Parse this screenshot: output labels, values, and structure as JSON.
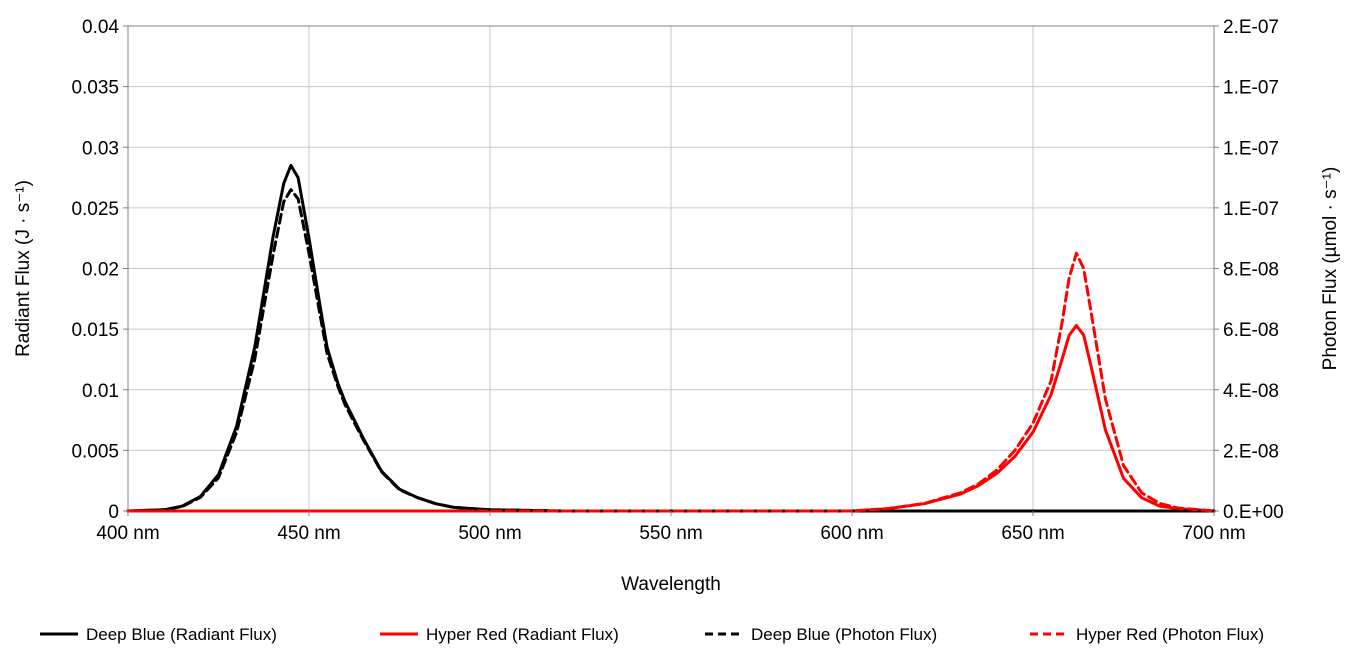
{
  "chart_data": {
    "type": "line",
    "title": "",
    "xlabel": "Wavelength",
    "ylabel_left": "Radiant Flux (J · s⁻¹)",
    "ylabel_right": "Photon Flux (µmol · s⁻¹)",
    "xlim": [
      400,
      700
    ],
    "ylim_left": [
      0,
      0.04
    ],
    "ylim_right": [
      0,
      1.6e-07
    ],
    "x_ticks": [
      400,
      450,
      500,
      550,
      600,
      650,
      700
    ],
    "x_tick_labels": [
      "400 nm",
      "450 nm",
      "500 nm",
      "550 nm",
      "600 nm",
      "650 nm",
      "700 nm"
    ],
    "y_left_ticks": [
      0,
      0.005,
      0.01,
      0.015,
      0.02,
      0.025,
      0.03,
      0.035,
      0.04
    ],
    "y_left_tick_labels": [
      "0",
      "0.005",
      "0.01",
      "0.015",
      "0.02",
      "0.025",
      "0.03",
      "0.035",
      "0.04"
    ],
    "y_right_ticks": [
      0,
      2e-08,
      4e-08,
      6e-08,
      8e-08,
      1e-07,
      1.2e-07,
      1.4e-07,
      1.6e-07
    ],
    "y_right_tick_labels": [
      "0.E+00",
      "2.E-08",
      "4.E-08",
      "6.E-08",
      "8.E-08",
      "1.E-07",
      "1.E-07",
      "1.E-07",
      "2.E-07"
    ],
    "grid": true,
    "legend_position": "bottom",
    "series": [
      {
        "name": "Deep Blue (Radiant Flux)",
        "axis": "left",
        "color": "#000000",
        "dash": "solid",
        "x": [
          400,
          410,
          415,
          420,
          425,
          430,
          435,
          440,
          443,
          445,
          447,
          450,
          453,
          455,
          458,
          460,
          463,
          465,
          470,
          475,
          480,
          485,
          490,
          495,
          500,
          510,
          520,
          550,
          600,
          650,
          700
        ],
        "y": [
          0,
          0.0001,
          0.0004,
          0.0012,
          0.003,
          0.007,
          0.0135,
          0.0225,
          0.027,
          0.0285,
          0.0275,
          0.0225,
          0.017,
          0.0135,
          0.0105,
          0.009,
          0.0072,
          0.006,
          0.0033,
          0.0018,
          0.0011,
          0.0006,
          0.0003,
          0.0002,
          0.0001,
          5e-05,
          0,
          0,
          0,
          0,
          0
        ]
      },
      {
        "name": "Hyper Red (Radiant Flux)",
        "axis": "left",
        "color": "#ff0000",
        "dash": "solid",
        "x": [
          400,
          500,
          600,
          610,
          620,
          630,
          635,
          640,
          645,
          650,
          655,
          658,
          660,
          662,
          664,
          666,
          670,
          675,
          680,
          685,
          690,
          695,
          700
        ],
        "y": [
          0,
          0,
          0,
          0.0002,
          0.0006,
          0.0014,
          0.0021,
          0.0031,
          0.0045,
          0.0065,
          0.0096,
          0.0125,
          0.0145,
          0.0153,
          0.0145,
          0.012,
          0.0067,
          0.0027,
          0.0011,
          0.0004,
          0.0002,
          0.0001,
          0
        ]
      },
      {
        "name": "Deep Blue (Photon Flux)",
        "axis": "right",
        "color": "#000000",
        "dash": "dashed",
        "x": [
          400,
          410,
          415,
          420,
          425,
          430,
          435,
          440,
          443,
          445,
          447,
          450,
          453,
          455,
          458,
          460,
          463,
          465,
          470,
          475,
          480,
          485,
          490,
          495,
          500,
          510,
          520,
          550,
          600,
          650,
          700
        ],
        "y": [
          0,
          4e-10,
          1.5e-09,
          4.5e-09,
          1.1e-08,
          2.6e-08,
          5e-08,
          8.4e-08,
          1.02e-07,
          1.06e-07,
          1.03e-07,
          8.5e-08,
          6.5e-08,
          5.2e-08,
          4.1e-08,
          3.5e-08,
          2.8e-08,
          2.35e-08,
          1.3e-08,
          7e-09,
          4.4e-09,
          2.4e-09,
          1.2e-09,
          8e-10,
          4e-10,
          2e-10,
          0,
          0,
          0,
          0,
          0
        ]
      },
      {
        "name": "Hyper Red (Photon Flux)",
        "axis": "right",
        "color": "#ff0000",
        "dash": "dashed",
        "x": [
          400,
          500,
          600,
          610,
          620,
          630,
          635,
          640,
          645,
          650,
          655,
          658,
          660,
          662,
          664,
          666,
          670,
          675,
          680,
          685,
          690,
          695,
          700
        ],
        "y": [
          0,
          0,
          0,
          8e-10,
          2.5e-09,
          6e-09,
          9e-09,
          1.35e-08,
          2e-08,
          2.9e-08,
          4.3e-08,
          6.2e-08,
          7.7e-08,
          8.5e-08,
          8e-08,
          6.6e-08,
          3.7e-08,
          1.5e-08,
          6e-09,
          2.5e-09,
          1e-09,
          5e-10,
          0
        ]
      }
    ]
  }
}
